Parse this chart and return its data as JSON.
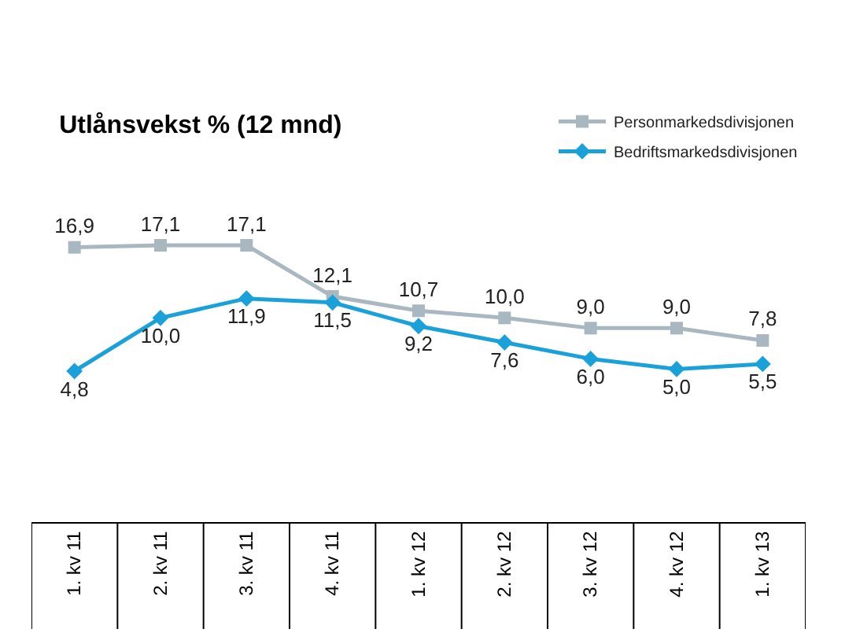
{
  "chart_data": {
    "type": "line",
    "title": "Utlånsvekst % (12 mnd)",
    "categories": [
      "1. kv 11",
      "2. kv 11",
      "3. kv 11",
      "4. kv 11",
      "1. kv 12",
      "2. kv 12",
      "3. kv 12",
      "4. kv 12",
      "1. kv 13"
    ],
    "series": [
      {
        "name": "Personmarkedsdivisjonen",
        "color": "#a9b8c0",
        "marker": "square",
        "values": [
          16.9,
          17.1,
          17.1,
          12.1,
          10.7,
          10.0,
          9.0,
          9.0,
          7.8
        ],
        "value_labels": [
          "16,9",
          "17,1",
          "17,1",
          "12,1",
          "10,7",
          "10,0",
          "9,0",
          "9,0",
          "7,8"
        ]
      },
      {
        "name": "Bedriftsmarkedsdivisjonen",
        "color": "#1ba1d9",
        "marker": "diamond",
        "values": [
          4.8,
          10.0,
          11.9,
          11.5,
          9.2,
          7.6,
          6.0,
          5.0,
          5.5
        ],
        "value_labels": [
          "4,8",
          "10,0",
          "11,9",
          "11,5",
          "9,2",
          "7,6",
          "6,0",
          "5,0",
          "5,5"
        ]
      }
    ],
    "legend": "top right"
  }
}
